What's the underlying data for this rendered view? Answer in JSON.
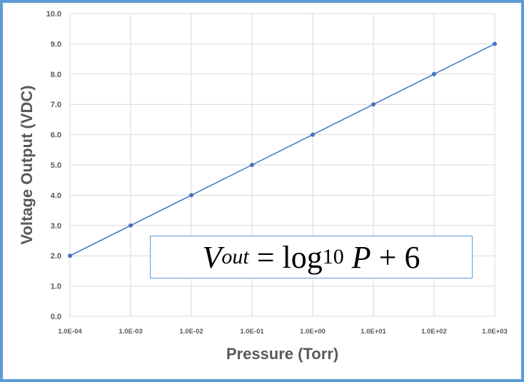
{
  "chart_data": {
    "type": "line",
    "title": "",
    "xlabel": "Pressure (Torr)",
    "ylabel": "Voltage Output (VDC)",
    "x_scale": "log",
    "categories": [
      "1.0E-04",
      "1.0E-03",
      "1.0E-02",
      "1.0E-01",
      "1.0E+00",
      "1.0E+01",
      "1.0E+02",
      "1.0E+03"
    ],
    "x": [
      0.0001,
      0.001,
      0.01,
      0.1,
      1,
      10,
      100,
      1000
    ],
    "series": [
      {
        "name": "Voltage Output",
        "values": [
          2,
          3,
          4,
          5,
          6,
          7,
          8,
          9
        ],
        "color": "#4472c4"
      }
    ],
    "ylim": [
      0,
      10
    ],
    "yticks": [
      "0.0",
      "1.0",
      "2.0",
      "3.0",
      "4.0",
      "5.0",
      "6.0",
      "7.0",
      "8.0",
      "9.0",
      "10.0"
    ],
    "grid": true,
    "annotation": {
      "v": "V",
      "v_sub": "out",
      "eq": "=",
      "log": "log",
      "log_sub": "10",
      "p": "P",
      "rest": "+ 6"
    }
  },
  "colors": {
    "frame": "#5b9bd5",
    "grid": "#d9d9d9",
    "line": "#4472c4",
    "text": "#595959"
  }
}
